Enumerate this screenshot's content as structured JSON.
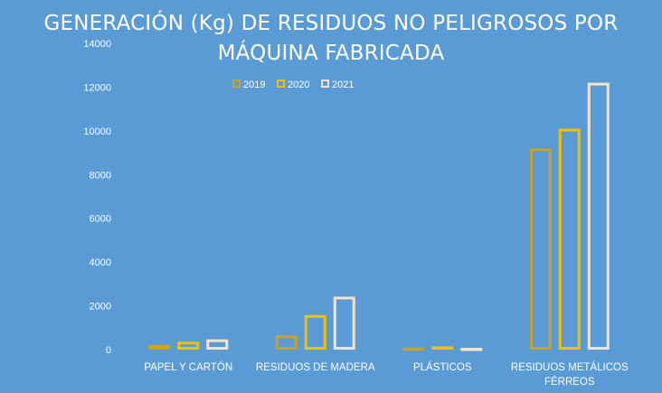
{
  "chart_data": {
    "type": "bar",
    "title": "GENERACIÓN (Kg) DE RESIDUOS NO PELIGROSOS POR\nMÁQUINA FABRICADA",
    "categories": [
      [
        "PAPEL Y CARTÓN"
      ],
      [
        "RESIDUOS DE MADERA"
      ],
      [
        "PLÁSTICOS"
      ],
      [
        "RESIDUOS METÁLICOS",
        "FÉRREOS"
      ]
    ],
    "series": [
      {
        "name": "2019",
        "color": "#c9a227",
        "values": [
          220,
          650,
          100,
          9200
        ]
      },
      {
        "name": "2020",
        "color": "#f2c000",
        "values": [
          360,
          1580,
          150,
          10100
        ]
      },
      {
        "name": "2021",
        "color": "#f7e3c8",
        "values": [
          470,
          2420,
          80,
          12200
        ]
      }
    ],
    "ylim": [
      0,
      14000
    ],
    "yticks": [
      0,
      2000,
      4000,
      6000,
      8000,
      10000,
      12000,
      14000
    ],
    "xlabel": "",
    "ylabel": "",
    "grid": false,
    "legend": "top-left"
  }
}
